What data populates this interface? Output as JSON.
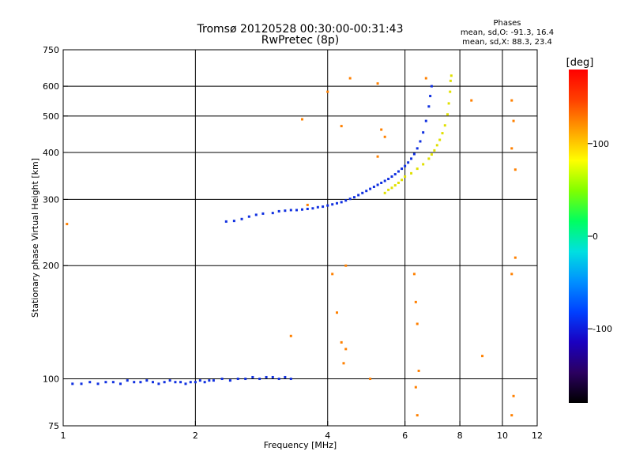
{
  "header": {
    "title_line1": "Tromsø 20120528 00:30:00-00:31:43",
    "title_line2": "RwPretec (8p)",
    "phase_heading": "Phases",
    "phase_line1": "mean, sd,O: -91.3, 16.4",
    "phase_line2": "mean, sd,X:  88.3, 23.4"
  },
  "chart_data": {
    "type": "scatter",
    "title": "Tromsø 20120528 00:30:00-00:31:43",
    "subtitle": "RwPretec (8p)",
    "xlabel": "Frequency [MHz]",
    "ylabel": "Stationary phase Virtual Height [km]",
    "x_scale": "log",
    "y_scale": "log",
    "xlim": [
      1,
      12
    ],
    "ylim": [
      75,
      750
    ],
    "x_ticks": [
      1,
      2,
      4,
      6,
      8,
      10,
      12
    ],
    "y_ticks": [
      75,
      100,
      200,
      300,
      400,
      500,
      600,
      750
    ],
    "x_gridlines": [
      2,
      4,
      6,
      8,
      10
    ],
    "y_gridlines": [
      100,
      200,
      300,
      400,
      500,
      600
    ],
    "grid": true,
    "colorbar": {
      "label": "[deg]",
      "ticks": [
        100,
        0,
        -100
      ],
      "range": [
        -180,
        180
      ],
      "colors": [
        "#000000",
        "#2b0060",
        "#1a00c0",
        "#0040ff",
        "#0090ff",
        "#00e0e0",
        "#00ff60",
        "#80ff00",
        "#ffff00",
        "#ffa000",
        "#ff4000",
        "#ff0000"
      ]
    },
    "series": [
      {
        "description_key": "o_mode_F",
        "color": "#1030e0",
        "points": [
          [
            2.35,
            262
          ],
          [
            2.45,
            263
          ],
          [
            2.55,
            266
          ],
          [
            2.65,
            270
          ],
          [
            2.75,
            273
          ],
          [
            2.85,
            275
          ],
          [
            3.0,
            276
          ],
          [
            3.1,
            279
          ],
          [
            3.2,
            280
          ],
          [
            3.3,
            281
          ],
          [
            3.4,
            281
          ],
          [
            3.5,
            282
          ],
          [
            3.6,
            283
          ],
          [
            3.7,
            284
          ],
          [
            3.8,
            286
          ],
          [
            3.9,
            287
          ],
          [
            4.0,
            289
          ],
          [
            4.1,
            291
          ],
          [
            4.2,
            293
          ],
          [
            4.3,
            295
          ],
          [
            4.4,
            298
          ],
          [
            4.5,
            301
          ],
          [
            4.6,
            304
          ],
          [
            4.7,
            308
          ],
          [
            4.8,
            312
          ],
          [
            4.9,
            316
          ],
          [
            5.0,
            320
          ],
          [
            5.1,
            324
          ],
          [
            5.2,
            328
          ],
          [
            5.3,
            332
          ],
          [
            5.4,
            336
          ],
          [
            5.5,
            340
          ],
          [
            5.6,
            345
          ],
          [
            5.7,
            350
          ],
          [
            5.8,
            356
          ],
          [
            5.9,
            362
          ],
          [
            6.0,
            368
          ],
          [
            6.1,
            376
          ],
          [
            6.2,
            385
          ],
          [
            6.3,
            396
          ],
          [
            6.4,
            410
          ],
          [
            6.5,
            428
          ],
          [
            6.6,
            452
          ],
          [
            6.7,
            485
          ],
          [
            6.8,
            530
          ],
          [
            6.85,
            565
          ],
          [
            6.9,
            600
          ]
        ]
      },
      {
        "description_key": "o_mode_E",
        "color": "#1030e0",
        "points": [
          [
            1.05,
            97
          ],
          [
            1.1,
            97
          ],
          [
            1.15,
            98
          ],
          [
            1.2,
            97
          ],
          [
            1.25,
            98
          ],
          [
            1.3,
            98
          ],
          [
            1.35,
            97
          ],
          [
            1.4,
            99
          ],
          [
            1.45,
            98
          ],
          [
            1.5,
            98
          ],
          [
            1.55,
            99
          ],
          [
            1.6,
            98
          ],
          [
            1.65,
            97
          ],
          [
            1.7,
            98
          ],
          [
            1.75,
            99
          ],
          [
            1.8,
            98
          ],
          [
            1.85,
            98
          ],
          [
            1.9,
            97
          ],
          [
            1.95,
            98
          ],
          [
            2.0,
            98
          ],
          [
            2.05,
            99
          ],
          [
            2.1,
            98
          ],
          [
            2.15,
            99
          ],
          [
            2.2,
            99
          ],
          [
            2.3,
            100
          ],
          [
            2.4,
            99
          ],
          [
            2.5,
            100
          ],
          [
            2.6,
            100
          ],
          [
            2.7,
            101
          ],
          [
            2.8,
            100
          ],
          [
            2.9,
            101
          ],
          [
            3.0,
            101
          ],
          [
            3.1,
            100
          ],
          [
            3.2,
            101
          ],
          [
            3.3,
            100
          ]
        ]
      },
      {
        "description_key": "x_mode_F",
        "color": "#e0e000",
        "points": [
          [
            5.4,
            312
          ],
          [
            5.5,
            318
          ],
          [
            5.6,
            322
          ],
          [
            5.7,
            327
          ],
          [
            5.8,
            332
          ],
          [
            5.9,
            338
          ],
          [
            6.0,
            345
          ],
          [
            6.2,
            352
          ],
          [
            6.4,
            362
          ],
          [
            6.6,
            372
          ],
          [
            6.8,
            385
          ],
          [
            6.9,
            395
          ],
          [
            7.0,
            405
          ],
          [
            7.1,
            418
          ],
          [
            7.2,
            432
          ],
          [
            7.3,
            450
          ],
          [
            7.4,
            472
          ],
          [
            7.5,
            505
          ],
          [
            7.55,
            540
          ],
          [
            7.6,
            580
          ],
          [
            7.62,
            620
          ],
          [
            7.65,
            640
          ]
        ]
      },
      {
        "description_key": "scatter_noise",
        "color": "#ff8000",
        "points": [
          [
            1.02,
            258
          ],
          [
            3.5,
            490
          ],
          [
            4.0,
            580
          ],
          [
            4.3,
            470
          ],
          [
            4.4,
            200
          ],
          [
            4.35,
            110
          ],
          [
            4.3,
            125
          ],
          [
            4.5,
            630
          ],
          [
            5.2,
            610
          ],
          [
            5.3,
            460
          ],
          [
            5.4,
            440
          ],
          [
            5.2,
            390
          ],
          [
            6.3,
            190
          ],
          [
            6.35,
            160
          ],
          [
            6.4,
            140
          ],
          [
            6.45,
            105
          ],
          [
            6.35,
            95
          ],
          [
            6.4,
            80
          ],
          [
            6.7,
            630
          ],
          [
            8.5,
            550
          ],
          [
            9.0,
            115
          ],
          [
            10.5,
            550
          ],
          [
            10.6,
            485
          ],
          [
            10.5,
            410
          ],
          [
            10.7,
            360
          ],
          [
            10.5,
            190
          ],
          [
            10.7,
            210
          ],
          [
            10.6,
            90
          ],
          [
            10.5,
            80
          ],
          [
            4.1,
            190
          ],
          [
            4.2,
            150
          ],
          [
            4.4,
            120
          ],
          [
            5.0,
            100
          ],
          [
            3.6,
            290
          ],
          [
            3.3,
            130
          ]
        ]
      }
    ]
  }
}
